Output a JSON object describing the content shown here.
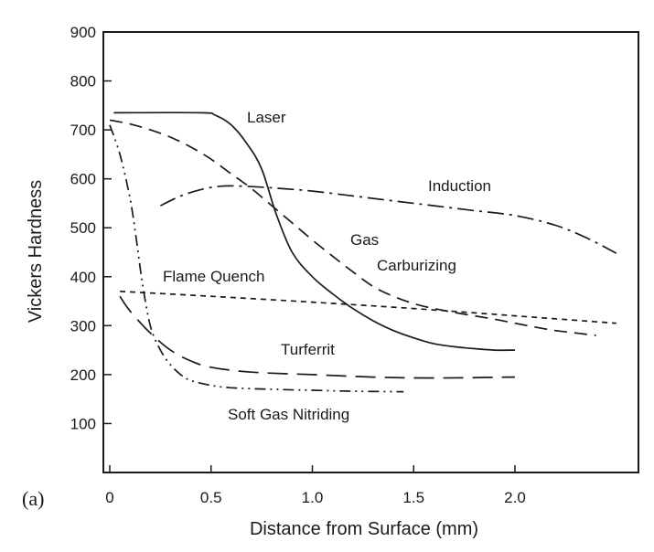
{
  "chart_data": {
    "type": "line",
    "title": "",
    "panel_label": "(a)",
    "xlabel": "Distance from Surface (mm)",
    "ylabel": "Vickers Hardness",
    "xlim": [
      0,
      2.5
    ],
    "ylim": [
      0,
      900
    ],
    "xticks": [
      0,
      0.5,
      1.0,
      1.5,
      2.0
    ],
    "xtick_labels": [
      "0",
      "0.5",
      "1.0",
      "1.5",
      "2.0"
    ],
    "yticks": [
      100,
      200,
      300,
      400,
      500,
      600,
      700,
      800,
      900
    ],
    "ytick_labels": [
      "100",
      "200",
      "300",
      "400",
      "500",
      "600",
      "700",
      "800",
      "900"
    ],
    "grid": false,
    "legend": "none (series labelled inline)",
    "series": [
      {
        "name": "Laser",
        "style": "solid",
        "x": [
          0.02,
          0.45,
          0.52,
          0.6,
          0.68,
          0.75,
          0.82,
          0.9,
          1.0,
          1.1,
          1.2,
          1.3,
          1.4,
          1.5,
          1.6,
          1.7,
          1.8,
          1.9,
          2.0
        ],
        "y": [
          735,
          735,
          730,
          710,
          670,
          620,
          530,
          450,
          400,
          365,
          335,
          310,
          290,
          275,
          263,
          257,
          253,
          250,
          250
        ]
      },
      {
        "name": "Induction",
        "style": "dash-dot",
        "x": [
          0.25,
          0.35,
          0.45,
          0.55,
          0.65,
          0.75,
          0.85,
          1.0,
          1.2,
          1.4,
          1.6,
          1.8,
          2.0,
          2.2,
          2.35,
          2.5
        ],
        "y": [
          545,
          565,
          578,
          585,
          585,
          583,
          580,
          575,
          565,
          555,
          545,
          535,
          525,
          505,
          480,
          448
        ]
      },
      {
        "name": "Gas Carburizing",
        "style": "dashed",
        "x": [
          0,
          0.1,
          0.2,
          0.3,
          0.4,
          0.5,
          0.6,
          0.7,
          0.8,
          0.9,
          1.0,
          1.1,
          1.2,
          1.3,
          1.4,
          1.5,
          1.6,
          1.7,
          1.8,
          1.9,
          2.0,
          2.1,
          2.2,
          2.3,
          2.4
        ],
        "y": [
          720,
          712,
          700,
          685,
          665,
          640,
          610,
          580,
          545,
          510,
          475,
          442,
          410,
          380,
          360,
          345,
          335,
          327,
          320,
          313,
          305,
          297,
          290,
          285,
          280
        ]
      },
      {
        "name": "Flame Quench",
        "style": "short-dash",
        "x": [
          0.05,
          0.5,
          1.0,
          1.5,
          2.0,
          2.5
        ],
        "y": [
          370,
          360,
          348,
          335,
          320,
          305
        ]
      },
      {
        "name": "Turferrit",
        "style": "long-dash",
        "x": [
          0.05,
          0.1,
          0.2,
          0.3,
          0.4,
          0.5,
          0.7,
          1.0,
          1.3,
          1.6,
          2.0
        ],
        "y": [
          360,
          330,
          285,
          250,
          228,
          215,
          205,
          200,
          195,
          193,
          195
        ]
      },
      {
        "name": "Soft Gas Nitriding",
        "style": "dash-dot-dot",
        "x": [
          0,
          0.05,
          0.1,
          0.13,
          0.16,
          0.2,
          0.25,
          0.3,
          0.35,
          0.4,
          0.5,
          0.6,
          0.8,
          1.0,
          1.2,
          1.45
        ],
        "y": [
          710,
          650,
          560,
          480,
          390,
          300,
          250,
          220,
          200,
          188,
          178,
          173,
          170,
          168,
          166,
          165
        ]
      }
    ]
  }
}
